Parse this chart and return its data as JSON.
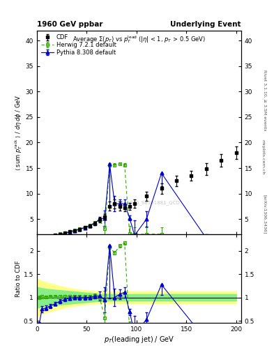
{
  "title_left": "1960 GeV ppbar",
  "title_right": "Underlying Event",
  "main_title": "Average $\\Sigma(p_T)$ vs $p_T^{\\mathrm{lead}}$ ($|\\eta|$ < 1, $p_T$ > 0.5 GeV)",
  "ylabel_main": "$\\langle$ sum $p_T^{\\mathrm{rack}}$ $\\rangle$ / $d\\eta\\,d\\phi$ / GeV",
  "ylabel_ratio": "Ratio to CDF",
  "xlabel": "$p_T$(leading jet) / GeV",
  "watermark": "CDF_2010_S8591881_QCD",
  "rivet_label": "Rivet 3.1.10, ≥ 3.5M events",
  "arxiv_label": "[arXiv:1306.3436]",
  "mcplots_label": "mcplots.cern.ch",
  "cdf_x": [
    2,
    5,
    9,
    13,
    18,
    23,
    28,
    33,
    38,
    43,
    48,
    53,
    58,
    63,
    68,
    73,
    78,
    83,
    88,
    93,
    98,
    110,
    125,
    140,
    155,
    170,
    185,
    200
  ],
  "cdf_y": [
    1.05,
    1.2,
    1.42,
    1.62,
    1.85,
    2.05,
    2.28,
    2.52,
    2.76,
    3.02,
    3.32,
    3.7,
    4.1,
    4.85,
    5.5,
    7.5,
    8.0,
    7.5,
    7.2,
    7.5,
    8.0,
    9.5,
    11.0,
    12.5,
    13.5,
    14.8,
    16.5,
    18.0
  ],
  "cdf_yerr": [
    0.12,
    0.12,
    0.12,
    0.12,
    0.15,
    0.15,
    0.15,
    0.2,
    0.2,
    0.25,
    0.25,
    0.3,
    0.35,
    0.45,
    0.55,
    0.9,
    0.9,
    0.9,
    0.7,
    0.7,
    0.8,
    0.9,
    1.0,
    1.0,
    1.0,
    1.1,
    1.2,
    1.2
  ],
  "herwig_x": [
    2,
    5,
    9,
    13,
    18,
    23,
    28,
    33,
    38,
    43,
    48,
    53,
    58,
    63,
    68,
    73,
    78,
    83,
    88,
    93,
    98,
    110,
    125
  ],
  "herwig_y": [
    1.05,
    1.22,
    1.44,
    1.65,
    1.88,
    2.1,
    2.33,
    2.58,
    2.83,
    3.08,
    3.4,
    3.78,
    4.28,
    4.78,
    3.1,
    15.6,
    15.6,
    15.8,
    15.6,
    2.15,
    2.0,
    2.05,
    2.05
  ],
  "herwig_yerr_lo": [
    0.04,
    0.04,
    0.04,
    0.04,
    0.05,
    0.05,
    0.06,
    0.07,
    0.07,
    0.08,
    0.09,
    0.11,
    0.15,
    0.25,
    1.8,
    0.3,
    0.3,
    0.3,
    0.3,
    1.5,
    1.4,
    1.4,
    1.4
  ],
  "herwig_yerr_hi": [
    0.04,
    0.04,
    0.04,
    0.04,
    0.05,
    0.05,
    0.06,
    0.07,
    0.07,
    0.08,
    0.09,
    0.11,
    0.15,
    0.25,
    3.2,
    0.3,
    0.3,
    0.3,
    0.3,
    1.5,
    1.4,
    1.4,
    1.4
  ],
  "pythia_x": [
    2,
    5,
    9,
    13,
    18,
    23,
    28,
    33,
    38,
    43,
    48,
    53,
    58,
    63,
    68,
    73,
    78,
    83,
    88,
    93,
    98,
    110,
    125,
    170
  ],
  "pythia_y": [
    0.42,
    0.9,
    1.1,
    1.32,
    1.6,
    1.88,
    2.18,
    2.48,
    2.75,
    3.0,
    3.3,
    3.7,
    4.2,
    5.0,
    5.2,
    15.8,
    8.0,
    8.0,
    8.0,
    5.2,
    1.8,
    5.0,
    14.0,
    1.25
  ],
  "pythia_yerr_lo": [
    0.08,
    0.08,
    0.08,
    0.08,
    0.08,
    0.08,
    0.09,
    0.1,
    0.1,
    0.12,
    0.13,
    0.15,
    0.18,
    0.45,
    1.5,
    8.5,
    1.5,
    0.8,
    0.8,
    0.5,
    1.6,
    1.5,
    2.5,
    0.8
  ],
  "pythia_yerr_hi": [
    0.08,
    0.08,
    0.08,
    0.08,
    0.08,
    0.08,
    0.09,
    0.1,
    0.1,
    0.12,
    0.13,
    0.15,
    0.18,
    0.45,
    1.5,
    0.05,
    1.5,
    0.8,
    0.8,
    0.5,
    3.0,
    1.5,
    0.05,
    0.8
  ],
  "ylim_main": [
    2,
    42
  ],
  "ylim_ratio": [
    0.45,
    2.35
  ],
  "xlim": [
    0,
    205
  ],
  "bg_color": "#ffffff",
  "cdf_color": "#000000",
  "herwig_color": "#33aa00",
  "pythia_color": "#0000cc",
  "band_yellow": "#ffff88",
  "band_green": "#88ee88",
  "band_x": [
    0,
    5,
    10,
    15,
    20,
    25,
    30,
    35,
    40,
    45,
    50,
    55,
    60,
    65,
    70,
    75,
    80,
    85,
    90,
    95,
    100,
    110,
    120,
    130,
    140,
    150,
    160,
    170,
    180,
    190,
    200
  ],
  "band_yl_lo": [
    0.6,
    0.65,
    0.68,
    0.71,
    0.74,
    0.77,
    0.79,
    0.81,
    0.83,
    0.84,
    0.85,
    0.86,
    0.87,
    0.87,
    0.87,
    0.87,
    0.87,
    0.87,
    0.87,
    0.87,
    0.87,
    0.87,
    0.87,
    0.87,
    0.87,
    0.87,
    0.87,
    0.87,
    0.87,
    0.87,
    0.87
  ],
  "band_yl_hi": [
    1.4,
    1.35,
    1.32,
    1.29,
    1.26,
    1.23,
    1.21,
    1.19,
    1.17,
    1.16,
    1.15,
    1.14,
    1.13,
    1.13,
    1.13,
    1.13,
    1.13,
    1.13,
    1.13,
    1.13,
    1.13,
    1.13,
    1.13,
    1.13,
    1.13,
    1.13,
    1.13,
    1.13,
    1.13,
    1.13,
    1.13
  ],
  "band_yg_lo": [
    0.78,
    0.8,
    0.82,
    0.83,
    0.84,
    0.85,
    0.86,
    0.87,
    0.88,
    0.89,
    0.9,
    0.91,
    0.92,
    0.93,
    0.93,
    0.93,
    0.93,
    0.93,
    0.93,
    0.93,
    0.93,
    0.93,
    0.93,
    0.93,
    0.93,
    0.93,
    0.93,
    0.93,
    0.93,
    0.93,
    0.93
  ],
  "band_yg_hi": [
    1.22,
    1.2,
    1.18,
    1.17,
    1.16,
    1.15,
    1.14,
    1.13,
    1.12,
    1.11,
    1.1,
    1.09,
    1.08,
    1.07,
    1.07,
    1.07,
    1.07,
    1.07,
    1.07,
    1.07,
    1.07,
    1.07,
    1.07,
    1.07,
    1.07,
    1.07,
    1.07,
    1.07,
    1.07,
    1.07,
    1.07
  ]
}
